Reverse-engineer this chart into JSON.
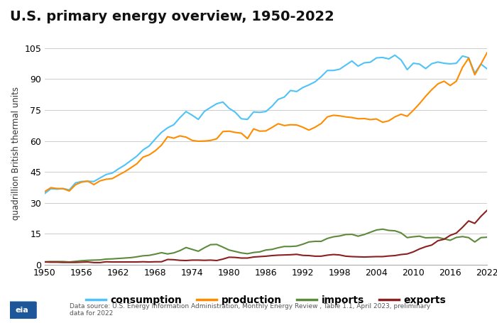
{
  "title": "U.S. primary energy overview, 1950-2022",
  "ylabel": "quadrillion British thermal units",
  "source_text": "Data source: U.S. Energy Information Administration, Monthly Energy Review , Table 1.1, April 2023, preliminary\ndata for 2022",
  "years": [
    1950,
    1951,
    1952,
    1953,
    1954,
    1955,
    1956,
    1957,
    1958,
    1959,
    1960,
    1961,
    1962,
    1963,
    1964,
    1965,
    1966,
    1967,
    1968,
    1969,
    1970,
    1971,
    1972,
    1973,
    1974,
    1975,
    1976,
    1977,
    1978,
    1979,
    1980,
    1981,
    1982,
    1983,
    1984,
    1985,
    1986,
    1987,
    1988,
    1989,
    1990,
    1991,
    1992,
    1993,
    1994,
    1995,
    1996,
    1997,
    1998,
    1999,
    2000,
    2001,
    2002,
    2003,
    2004,
    2005,
    2006,
    2007,
    2008,
    2009,
    2010,
    2011,
    2012,
    2013,
    2014,
    2015,
    2016,
    2017,
    2018,
    2019,
    2020,
    2021,
    2022
  ],
  "consumption": [
    34.6,
    36.9,
    36.7,
    37.0,
    36.3,
    39.7,
    40.4,
    40.5,
    40.4,
    42.1,
    43.8,
    44.5,
    46.5,
    48.3,
    50.5,
    52.7,
    55.7,
    57.6,
    61.0,
    64.2,
    66.4,
    67.9,
    71.3,
    74.3,
    72.5,
    70.5,
    74.4,
    76.3,
    78.1,
    78.9,
    75.9,
    74.0,
    70.8,
    70.5,
    74.1,
    73.9,
    74.3,
    76.9,
    80.2,
    81.3,
    84.5,
    84.0,
    85.9,
    87.2,
    88.7,
    91.2,
    94.2,
    94.2,
    94.8,
    96.8,
    98.8,
    96.3,
    97.9,
    98.2,
    100.3,
    100.5,
    99.8,
    101.6,
    99.3,
    94.6,
    97.7,
    97.3,
    95.1,
    97.5,
    98.3,
    97.7,
    97.4,
    97.7,
    101.2,
    100.4,
    92.9,
    97.3,
    95.0
  ],
  "production": [
    35.5,
    37.4,
    37.0,
    36.9,
    35.8,
    38.8,
    40.1,
    40.6,
    38.9,
    40.7,
    41.5,
    41.8,
    43.5,
    45.1,
    47.0,
    49.0,
    52.2,
    53.3,
    55.3,
    58.0,
    62.1,
    61.4,
    62.5,
    61.9,
    60.3,
    59.9,
    60.0,
    60.3,
    61.1,
    64.6,
    64.8,
    64.2,
    63.8,
    61.2,
    65.9,
    64.8,
    64.9,
    66.6,
    68.4,
    67.5,
    67.9,
    67.8,
    66.7,
    65.3,
    66.7,
    68.5,
    71.7,
    72.5,
    72.2,
    71.7,
    71.4,
    70.8,
    70.9,
    70.4,
    70.7,
    69.1,
    69.8,
    71.7,
    73.0,
    72.0,
    74.9,
    78.1,
    81.7,
    84.9,
    87.7,
    89.0,
    86.9,
    89.0,
    95.7,
    100.2,
    92.1,
    97.3,
    102.8
  ],
  "imports": [
    1.5,
    1.6,
    1.6,
    1.6,
    1.4,
    1.7,
    2.0,
    2.2,
    2.3,
    2.4,
    2.8,
    2.9,
    3.1,
    3.3,
    3.5,
    3.9,
    4.4,
    4.6,
    5.2,
    5.9,
    5.3,
    5.8,
    6.9,
    8.4,
    7.5,
    6.6,
    8.3,
    9.8,
    9.9,
    8.6,
    7.2,
    6.5,
    5.8,
    5.4,
    6.0,
    6.3,
    7.2,
    7.5,
    8.3,
    8.9,
    8.9,
    9.1,
    10.0,
    11.1,
    11.4,
    11.4,
    12.8,
    13.6,
    14.0,
    14.7,
    14.8,
    13.9,
    14.7,
    15.8,
    16.9,
    17.3,
    16.7,
    16.5,
    15.5,
    13.2,
    13.6,
    13.9,
    13.1,
    13.2,
    13.3,
    12.6,
    11.9,
    13.3,
    13.7,
    13.2,
    11.1,
    13.2,
    13.4
  ],
  "exports": [
    1.4,
    1.3,
    1.3,
    1.2,
    1.2,
    1.2,
    1.3,
    1.4,
    1.1,
    1.1,
    1.5,
    1.4,
    1.4,
    1.4,
    1.4,
    1.4,
    1.5,
    1.4,
    1.5,
    1.5,
    2.6,
    2.5,
    2.2,
    2.1,
    2.3,
    2.3,
    2.2,
    2.3,
    2.1,
    2.8,
    3.7,
    3.6,
    3.3,
    3.3,
    3.8,
    4.0,
    4.2,
    4.5,
    4.7,
    4.8,
    4.9,
    5.1,
    4.6,
    4.5,
    4.2,
    4.2,
    4.7,
    5.0,
    4.8,
    4.2,
    4.0,
    3.9,
    3.8,
    3.9,
    4.0,
    4.0,
    4.3,
    4.5,
    5.0,
    5.3,
    6.3,
    7.7,
    8.8,
    9.6,
    11.7,
    12.4,
    14.3,
    15.4,
    18.2,
    21.3,
    20.1,
    23.5,
    26.4
  ],
  "consumption_color": "#4FC3F7",
  "production_color": "#FF8C00",
  "imports_color": "#5D8A3C",
  "exports_color": "#8B2020",
  "ylim": [
    0,
    108
  ],
  "yticks": [
    0,
    15,
    30,
    45,
    60,
    75,
    90,
    105
  ],
  "xticks": [
    1950,
    1956,
    1962,
    1968,
    1974,
    1980,
    1986,
    1992,
    1998,
    2004,
    2010,
    2016,
    2022
  ],
  "bg_color": "#FFFFFF",
  "grid_color": "#CCCCCC",
  "line_width": 1.5
}
